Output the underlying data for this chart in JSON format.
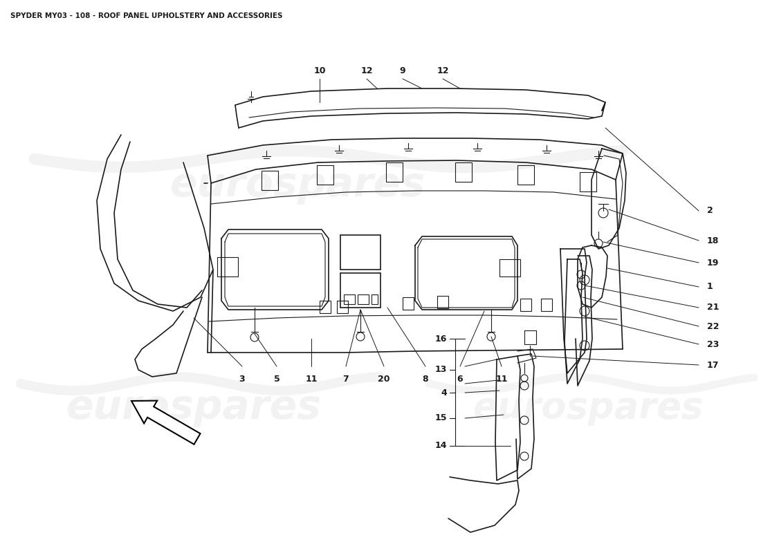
{
  "title": "SPYDER MY03 - 108 - ROOF PANEL UPHOLSTERY AND ACCESSORIES",
  "title_fontsize": 7.5,
  "bg_color": "#ffffff",
  "lc": "#1a1a1a",
  "wm_color": "#cccccc",
  "wm_text": "eurospares",
  "fs": 9
}
